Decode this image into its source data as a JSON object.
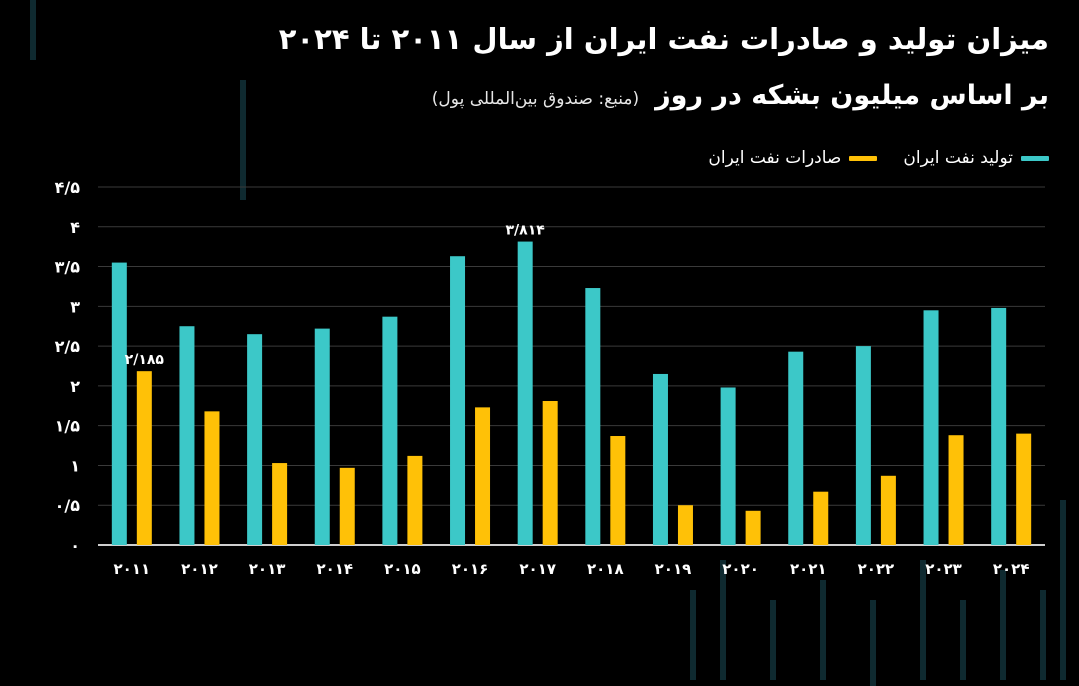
{
  "header": {
    "title": "میزان تولید و صادرات نفت ایران از سال ۲۰۱۱ تا ۲۰۲۴",
    "subtitle": "بر اساس میلیون بشکه در روز",
    "source": "(منبع: صندوق بین‌المللی پول)"
  },
  "colors": {
    "production": "#3cc8c8",
    "exports": "#ffc107",
    "background": "#000000",
    "axis": "#cfcfcf",
    "grid": "#3a3a3a"
  },
  "legend": {
    "production": "تولید نفت ایران",
    "exports": "صادرات نفت ایران"
  },
  "chart_data": {
    "type": "bar",
    "categories": [
      "۲۰۱۱",
      "۲۰۱۲",
      "۲۰۱۳",
      "۲۰۱۴",
      "۲۰۱۵",
      "۲۰۱۶",
      "۲۰۱۷",
      "۲۰۱۸",
      "۲۰۱۹",
      "۲۰۲۰",
      "۲۰۲۱",
      "۲۰۲۲",
      "۲۰۲۳",
      "۲۰۲۴"
    ],
    "series": [
      {
        "name": "تولید نفت ایران",
        "key": "production",
        "values": [
          3.55,
          2.75,
          2.65,
          2.72,
          2.87,
          3.63,
          3.814,
          3.23,
          2.15,
          1.98,
          2.43,
          2.5,
          2.95,
          2.98
        ]
      },
      {
        "name": "صادرات نفت ایران",
        "key": "exports",
        "values": [
          2.185,
          1.68,
          1.03,
          0.97,
          1.12,
          1.73,
          1.81,
          1.37,
          0.5,
          0.43,
          0.67,
          0.87,
          1.38,
          1.4
        ]
      }
    ],
    "ylim": [
      0,
      4.5
    ],
    "yticks": [
      0,
      0.5,
      1,
      1.5,
      2,
      2.5,
      3,
      3.5,
      4,
      4.5
    ],
    "ytick_labels": [
      "۰",
      "۰/۵",
      "۱",
      "۱/۵",
      "۲",
      "۲/۵",
      "۳",
      "۳/۵",
      "۴",
      "۴/۵"
    ],
    "grid": true,
    "legend_position": "top-right",
    "annotations": [
      {
        "series": "exports",
        "index": 0,
        "text": "۲/۱۸۵"
      },
      {
        "series": "production",
        "index": 6,
        "text": "۳/۸۱۴"
      }
    ]
  }
}
